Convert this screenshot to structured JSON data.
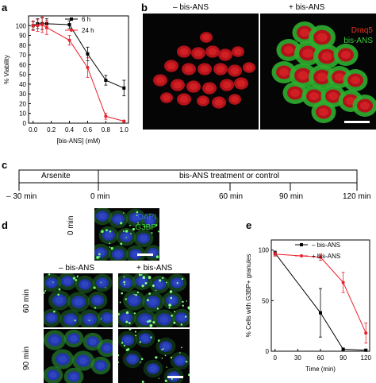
{
  "panels": {
    "a": "a",
    "b": "b",
    "c": "c",
    "d": "d",
    "e": "e"
  },
  "panel_b": {
    "col1": "– bis-ANS",
    "col2": "+ bis-ANS",
    "legend1": "Draq5",
    "legend2": "bis-ANS",
    "legend1_color": "#e8321e",
    "legend2_color": "#3ccf3c"
  },
  "panel_c": {
    "seg1": "Arsenite",
    "seg2": "bis-ANS treatment or control",
    "ticks": [
      "– 30 min",
      "0 min",
      "60 min",
      "90 min",
      "120 min"
    ]
  },
  "panel_d": {
    "row0": "0 min",
    "row1": "60 min",
    "row2": "90 min",
    "col1": "– bis-ANS",
    "col2": "+ bis-ANS",
    "legend1": "DAPI",
    "legend2": "G3BP",
    "legend1_color": "#3d63ff",
    "legend2_color": "#3ccf3c"
  },
  "chart_data": [
    {
      "panel": "a",
      "type": "line",
      "xlabel": "[bis-ANS] (mM)",
      "ylabel": "% Viability",
      "xlim": [
        -0.05,
        1.05
      ],
      "ylim": [
        0,
        110
      ],
      "xticks": [
        "0.0",
        "0.2",
        "0.4",
        "0.6",
        "0.8",
        "1.0"
      ],
      "yticks": [
        "0",
        "10",
        "20",
        "30",
        "40",
        "50",
        "60",
        "70",
        "80",
        "90",
        "100"
      ],
      "series": [
        {
          "name": "6 h",
          "color": "#000000",
          "x": [
            0,
            0.05,
            0.1,
            0.15,
            0.4,
            0.6,
            0.8,
            1.0
          ],
          "y": [
            100,
            102,
            102,
            102,
            101,
            71,
            44,
            36
          ],
          "err": [
            4,
            5,
            6,
            5,
            4,
            7,
            5,
            8
          ]
        },
        {
          "name": "24 h",
          "color": "#e8202a",
          "x": [
            0,
            0.05,
            0.1,
            0.15,
            0.4,
            0.6,
            0.8,
            1.0
          ],
          "y": [
            100,
            100,
            101,
            98,
            85,
            57,
            7,
            2
          ],
          "err": [
            5,
            6,
            8,
            7,
            5,
            10,
            3,
            1
          ]
        }
      ]
    },
    {
      "panel": "e",
      "type": "line",
      "xlabel": "Time (min)",
      "ylabel": "% Cells with G3BP+ granules",
      "xlim": [
        -5,
        125
      ],
      "ylim": [
        0,
        110
      ],
      "xticks": [
        "0",
        "30",
        "60",
        "90",
        "120"
      ],
      "yticks": [
        "0",
        "50",
        "100"
      ],
      "series": [
        {
          "name": "– bis-ANS",
          "color": "#000000",
          "x": [
            0,
            60,
            90,
            120
          ],
          "y": [
            97,
            38,
            2,
            1
          ],
          "err": [
            2,
            24,
            1,
            1
          ]
        },
        {
          "name": "+ bis-ANS",
          "color": "#e8202a",
          "x": [
            0,
            60,
            90,
            120
          ],
          "y": [
            96,
            93,
            68,
            18
          ],
          "err": [
            2,
            3,
            10,
            10
          ]
        }
      ]
    }
  ]
}
